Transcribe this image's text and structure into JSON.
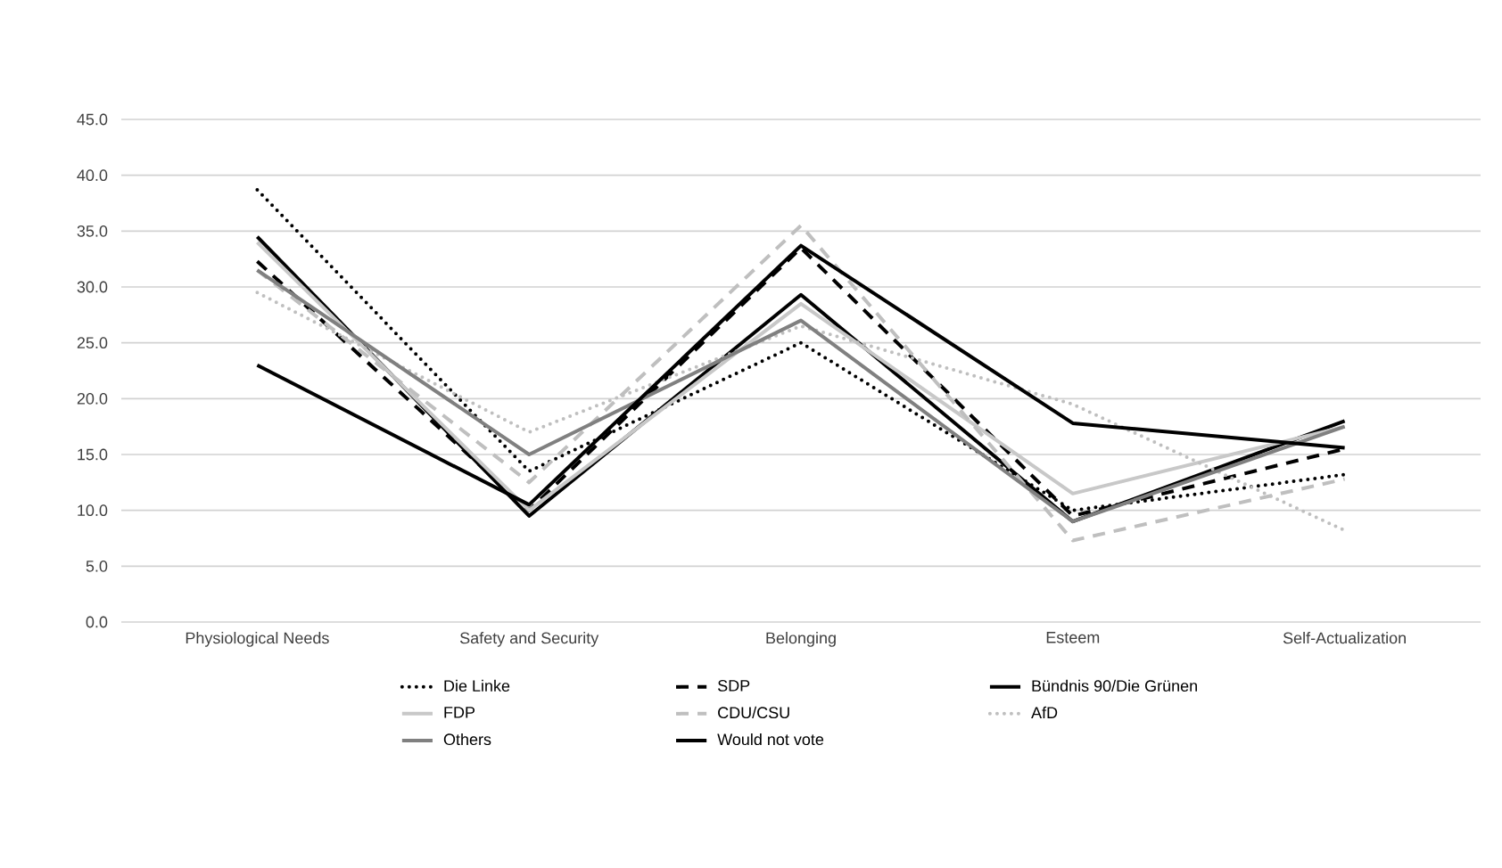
{
  "chart_data": {
    "type": "line",
    "categories": [
      "Physiological Needs",
      "Safety and Security",
      "Belonging",
      "Esteem",
      "Self-Actualization"
    ],
    "series": [
      {
        "name": "Die Linke",
        "color": "#000000",
        "line_style": "dotted",
        "values": [
          38.7,
          13.5,
          25.0,
          10.0,
          13.2
        ]
      },
      {
        "name": "SDP",
        "color": "#000000",
        "line_style": "dashed",
        "values": [
          32.3,
          10.0,
          33.5,
          9.5,
          15.5
        ]
      },
      {
        "name": "Bündnis 90/Die Grünen",
        "color": "#000000",
        "line_style": "solid",
        "values": [
          34.5,
          9.5,
          29.3,
          9.0,
          18.0
        ]
      },
      {
        "name": "FDP",
        "color": "#c8c8c8",
        "line_style": "solid",
        "values": [
          34.0,
          10.0,
          28.5,
          11.5,
          17.5
        ]
      },
      {
        "name": "CDU/CSU",
        "color": "#bfbfbf",
        "line_style": "dashed",
        "values": [
          31.5,
          12.5,
          35.5,
          7.3,
          12.8
        ]
      },
      {
        "name": "AfD",
        "color": "#bfbfbf",
        "line_style": "dotted",
        "values": [
          29.5,
          17.0,
          26.5,
          19.5,
          8.2
        ]
      },
      {
        "name": "Others",
        "color": "#808080",
        "line_style": "solid",
        "values": [
          31.5,
          15.0,
          27.0,
          9.0,
          17.5
        ]
      },
      {
        "name": "Would not vote",
        "color": "#000000",
        "line_style": "solid",
        "values": [
          23.0,
          10.5,
          33.7,
          17.8,
          15.6
        ]
      }
    ],
    "ylim": [
      0,
      45
    ],
    "yticks": [
      {
        "value": 0,
        "label": "0.0"
      },
      {
        "value": 5,
        "label": "5.0"
      },
      {
        "value": 10,
        "label": "10.0"
      },
      {
        "value": 15,
        "label": "15.0"
      },
      {
        "value": 20,
        "label": "20.0"
      },
      {
        "value": 25,
        "label": "25.0"
      },
      {
        "value": 30,
        "label": "30.0"
      },
      {
        "value": 35,
        "label": "35.0"
      },
      {
        "value": 40,
        "label": "40.0"
      },
      {
        "value": 45,
        "label": "45.0"
      }
    ],
    "grid": "y",
    "legend": "bottom",
    "marker": "none"
  }
}
